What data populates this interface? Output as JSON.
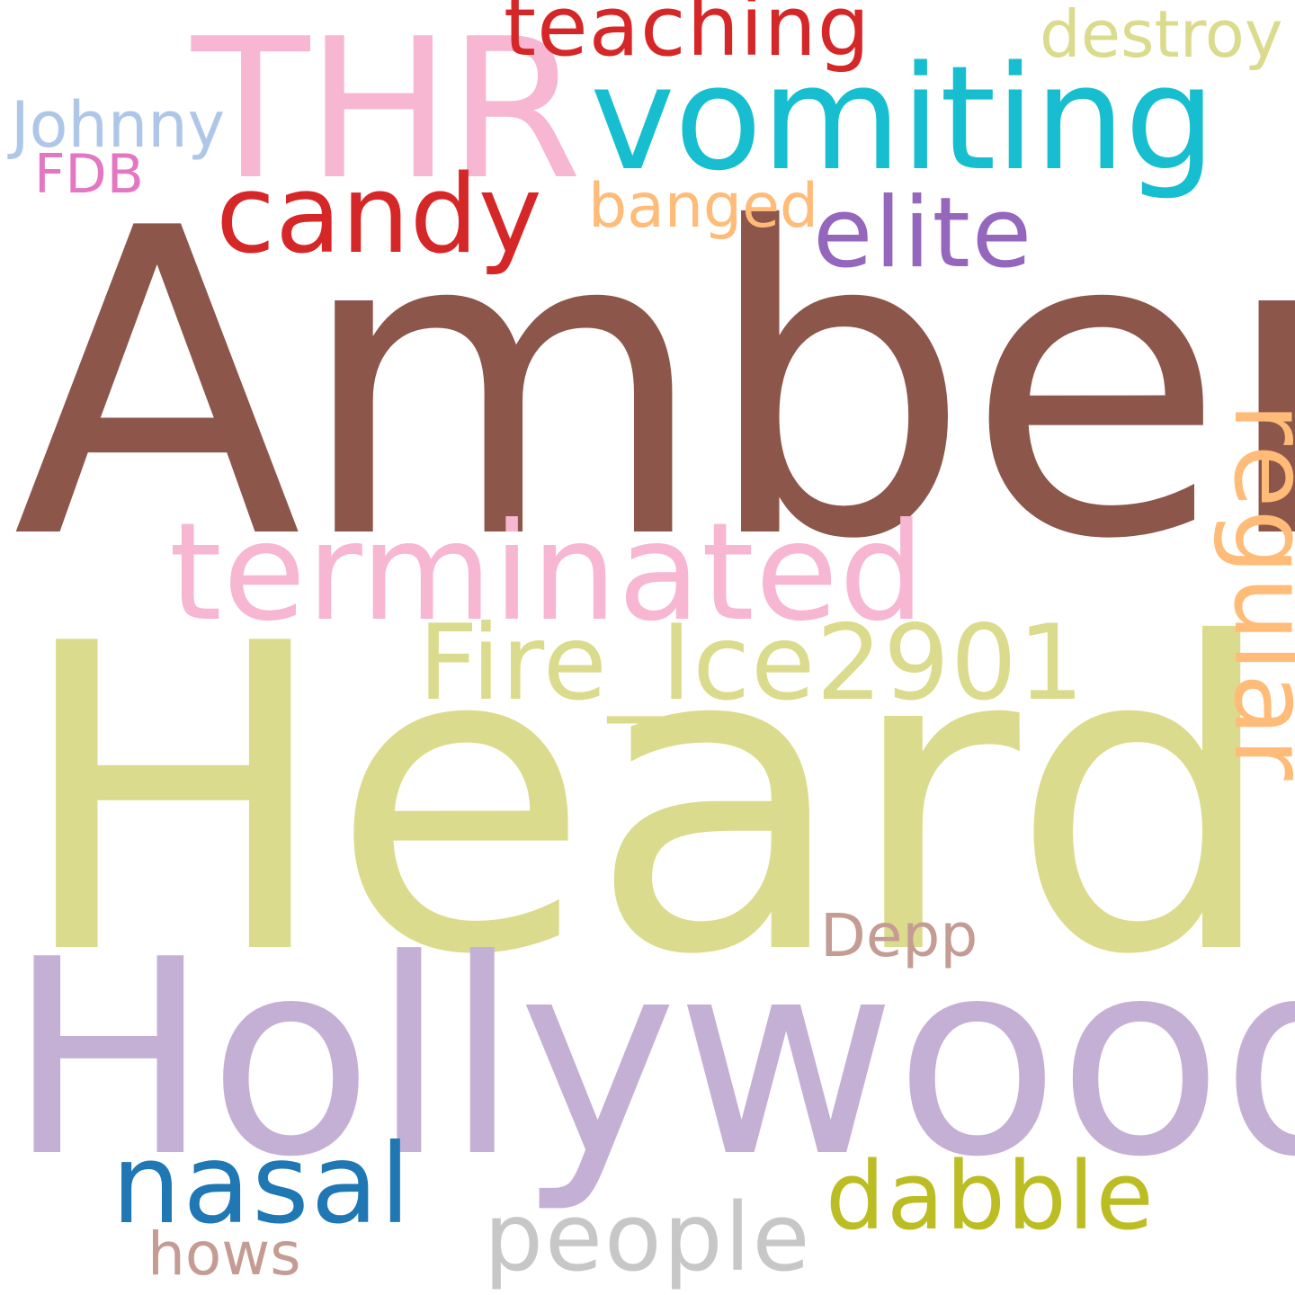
{
  "words": [
    {
      "id": "amber",
      "text": "Amber",
      "color": "#8c564b"
    },
    {
      "id": "heard",
      "text": "Heard",
      "color": "#dbdb8d"
    },
    {
      "id": "hollywood",
      "text": "Hollywood",
      "color": "#c5b0d5"
    },
    {
      "id": "terminated",
      "text": "terminated",
      "color": "#f7b6d2"
    },
    {
      "id": "fireice",
      "text": "Fire_Ice2901",
      "color": "#dbdb8d"
    },
    {
      "id": "regular",
      "text": "regular",
      "color": "#ffbb78",
      "orientation": "vertical"
    },
    {
      "id": "thr",
      "text": "THR",
      "color": "#f7b6d2"
    },
    {
      "id": "vomiting",
      "text": "vomiting",
      "color": "#17becf"
    },
    {
      "id": "candy",
      "text": "candy",
      "color": "#d62728"
    },
    {
      "id": "elite",
      "text": "elite",
      "color": "#9467bd"
    },
    {
      "id": "teaching",
      "text": "teaching",
      "color": "#d62728"
    },
    {
      "id": "destroy",
      "text": "destroy",
      "color": "#dbdb8d"
    },
    {
      "id": "johnny",
      "text": "Johnny",
      "color": "#aec7e8"
    },
    {
      "id": "fdb",
      "text": "FDB",
      "color": "#e377c2"
    },
    {
      "id": "banged",
      "text": "banged",
      "color": "#ffbb78"
    },
    {
      "id": "depp",
      "text": "Depp",
      "color": "#c49c94"
    },
    {
      "id": "nasal",
      "text": "nasal",
      "color": "#1f77b4"
    },
    {
      "id": "dabble",
      "text": "dabble",
      "color": "#bcbd22"
    },
    {
      "id": "people",
      "text": "people",
      "color": "#c7c7c7"
    },
    {
      "id": "hows",
      "text": "hows",
      "color": "#c49c94"
    }
  ]
}
